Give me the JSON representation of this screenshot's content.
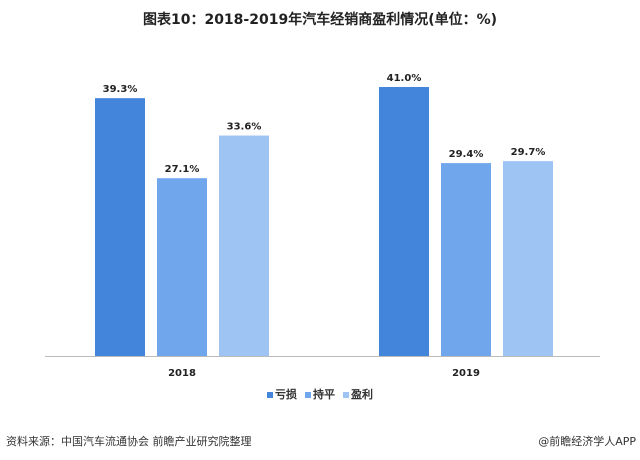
{
  "chart_data": {
    "type": "bar",
    "title": "图表10：2018-2019年汽车经销商盈利情况(单位：%)",
    "categories": [
      "2018",
      "2019"
    ],
    "series": [
      {
        "name": "亏损",
        "values": [
          39.3,
          41.0
        ],
        "color": "#4485dc"
      },
      {
        "name": "持平",
        "values": [
          27.1,
          29.4
        ],
        "color": "#6fa6ec"
      },
      {
        "name": "盈利",
        "values": [
          33.6,
          29.7
        ],
        "color": "#9ec4f4"
      }
    ],
    "data_labels": [
      [
        "39.3%",
        "41.0%"
      ],
      [
        "27.1%",
        "29.4%"
      ],
      [
        "33.6%",
        "29.7%"
      ]
    ],
    "ylim": [
      0,
      41
    ],
    "grid": false,
    "legend": "bottom"
  },
  "footer": {
    "source": "资料来源：中国汽车流通协会 前瞻产业研究院整理",
    "credit": "@前瞻经济学人APP"
  },
  "watermark": "前瞻产业研究院"
}
